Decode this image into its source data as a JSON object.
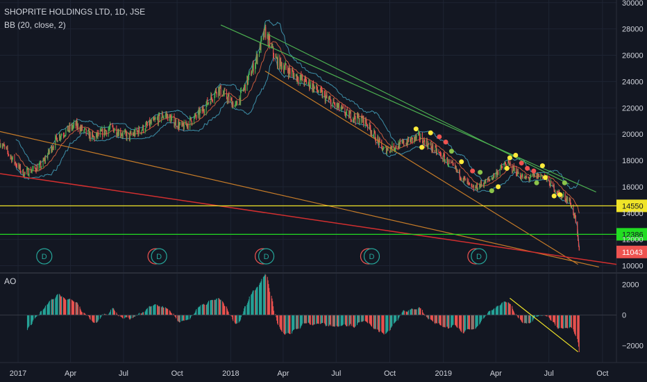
{
  "header": {
    "title": "SHOPRITE HOLDINGS LTD, 1D, JSE",
    "indicator": "BB (20, close, 2)",
    "ao_label": "AO"
  },
  "colors": {
    "background": "#131722",
    "grid": "#1e2433",
    "axis_text": "#d1d4dc",
    "candle_up": "#4caf50",
    "candle_down": "#ef5350",
    "bb_band": "#3d8fa8",
    "bb_basis": "#c85a3c",
    "green_trend": "#4caf50",
    "orange_trend": "#c77c28",
    "red_trend": "#d32f2f",
    "yellow_level": "#f0e428",
    "green_level": "#22dd22",
    "price_label": "#ef5350",
    "ao_up": "#26a69a",
    "ao_down": "#ef5350"
  },
  "chart_data": {
    "type": "candlestick",
    "price_axis": {
      "ticks": [
        "30000",
        "28000",
        "26000",
        "24000",
        "22000",
        "20000",
        "18000",
        "16000",
        "14000",
        "12000",
        "10000"
      ],
      "range": [
        9500,
        30200
      ]
    },
    "ao_axis": {
      "ticks": [
        "2000",
        "0",
        "−2000"
      ],
      "range": [
        -3100,
        2700
      ]
    },
    "time_axis": {
      "labels": [
        "2017",
        "Apr",
        "Jul",
        "Oct",
        "2018",
        "Apr",
        "Jul",
        "Oct",
        "2019",
        "Apr",
        "Jul",
        "Oct"
      ]
    },
    "close_path": [
      [
        "2016-12-01",
        19400
      ],
      [
        "2017-01-10",
        17000
      ],
      [
        "2017-02-10",
        17600
      ],
      [
        "2017-03-10",
        19800
      ],
      [
        "2017-04-10",
        20700
      ],
      [
        "2017-05-10",
        19700
      ],
      [
        "2017-06-10",
        20500
      ],
      [
        "2017-07-10",
        19800
      ],
      [
        "2017-08-10",
        20600
      ],
      [
        "2017-09-10",
        21500
      ],
      [
        "2017-10-10",
        20500
      ],
      [
        "2017-11-10",
        21600
      ],
      [
        "2017-12-10",
        23500
      ],
      [
        "2018-01-10",
        22100
      ],
      [
        "2018-02-10",
        25200
      ],
      [
        "2018-03-01",
        27800
      ],
      [
        "2018-03-20",
        25600
      ],
      [
        "2018-04-20",
        24500
      ],
      [
        "2018-05-20",
        23700
      ],
      [
        "2018-06-20",
        22500
      ],
      [
        "2018-07-20",
        21500
      ],
      [
        "2018-08-20",
        21000
      ],
      [
        "2018-09-20",
        18800
      ],
      [
        "2018-10-20",
        19200
      ],
      [
        "2018-11-20",
        19800
      ],
      [
        "2018-12-20",
        18700
      ],
      [
        "2019-01-20",
        17400
      ],
      [
        "2019-02-20",
        15800
      ],
      [
        "2019-03-20",
        16500
      ],
      [
        "2019-04-20",
        17800
      ],
      [
        "2019-05-20",
        16600
      ],
      [
        "2019-06-20",
        16900
      ],
      [
        "2019-07-20",
        15400
      ],
      [
        "2019-08-05",
        15000
      ],
      [
        "2019-08-15",
        13600
      ],
      [
        "2019-08-22",
        11043
      ]
    ],
    "trend_lines": [
      {
        "kind": "green_channel_top",
        "from": [
          "2017-12-15",
          28300
        ],
        "to": [
          "2019-09-20",
          15600
        ]
      },
      {
        "kind": "green_channel_mid",
        "from": [
          "2018-03-05",
          27600
        ],
        "to": [
          "2019-08-05",
          16200
        ]
      },
      {
        "kind": "orange_channel_low",
        "from": [
          "2018-03-01",
          24800
        ],
        "to": [
          "2019-08-20",
          10100
        ]
      },
      {
        "kind": "orange_long",
        "from": [
          "2016-12-01",
          20200
        ],
        "to": [
          "2019-09-25",
          9900
        ]
      },
      {
        "kind": "red_long",
        "from": [
          "2016-12-01",
          17000
        ],
        "to": [
          "2019-10-25",
          10100
        ]
      }
    ],
    "horizontal_levels": [
      {
        "value": 14550,
        "label": "14550",
        "kind": "yellow"
      },
      {
        "value": 12386,
        "label": "12386",
        "kind": "green"
      }
    ],
    "last_price": {
      "value": 11043,
      "label": "11043"
    },
    "event_markers": [
      {
        "date": "2017-02-15",
        "letter": "D"
      },
      {
        "date": "2017-08-25",
        "letter": "E"
      },
      {
        "date": "2017-08-31",
        "letter": "D"
      },
      {
        "date": "2018-02-25",
        "letter": "E"
      },
      {
        "date": "2018-03-03",
        "letter": "D"
      },
      {
        "date": "2018-08-25",
        "letter": "E"
      },
      {
        "date": "2018-08-31",
        "letter": "D"
      },
      {
        "date": "2019-02-25",
        "letter": "E"
      },
      {
        "date": "2019-03-03",
        "letter": "D"
      }
    ],
    "ao_trend_line": {
      "from": [
        "2019-04-25",
        1100
      ],
      "to": [
        "2019-08-20",
        -2400
      ]
    },
    "dots": [
      [
        "2018-11-15",
        20400,
        "yellow"
      ],
      [
        "2018-11-25",
        19000,
        "yellow"
      ],
      [
        "2018-12-10",
        20100,
        "yellow"
      ],
      [
        "2018-12-25",
        19800,
        "red"
      ],
      [
        "2019-01-05",
        19400,
        "red"
      ],
      [
        "2019-01-15",
        18700,
        "green"
      ],
      [
        "2019-02-01",
        17900,
        "yellow"
      ],
      [
        "2019-02-20",
        17200,
        "red"
      ],
      [
        "2019-03-05",
        17100,
        "green"
      ],
      [
        "2019-03-25",
        15700,
        "green"
      ],
      [
        "2019-04-05",
        16000,
        "yellow"
      ],
      [
        "2019-04-20",
        17400,
        "yellow"
      ],
      [
        "2019-04-25",
        18200,
        "yellow"
      ],
      [
        "2019-05-05",
        18400,
        "yellow"
      ],
      [
        "2019-05-15",
        17800,
        "red"
      ],
      [
        "2019-05-25",
        17400,
        "red"
      ],
      [
        "2019-06-05",
        17200,
        "red"
      ],
      [
        "2019-06-10",
        16300,
        "green"
      ],
      [
        "2019-06-20",
        17600,
        "yellow"
      ],
      [
        "2019-06-25",
        16700,
        "yellow"
      ],
      [
        "2019-07-10",
        15300,
        "yellow"
      ],
      [
        "2019-07-20",
        15400,
        "yellow"
      ],
      [
        "2019-07-28",
        16300,
        "green"
      ]
    ]
  }
}
